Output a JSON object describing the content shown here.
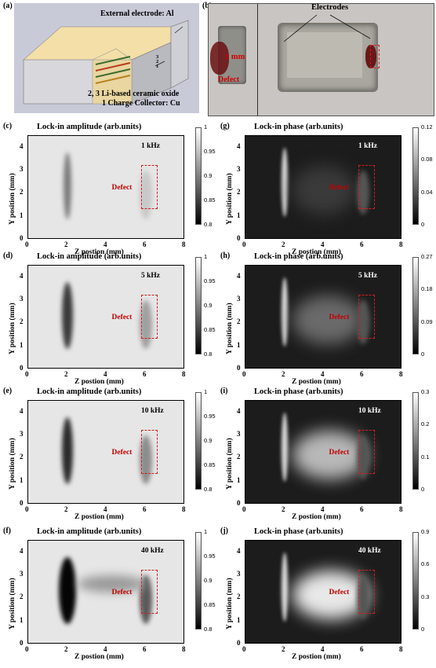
{
  "panels_top": {
    "a": {
      "label": "(a)",
      "text_electrode": "External electrode: Al",
      "text_oxide": "2, 3 Li-based ceramic oxide",
      "text_collector": "1 Charge Collector: Cu",
      "layer_nums": [
        "3",
        "2",
        "1"
      ]
    },
    "b": {
      "label": "(b)",
      "text_electrodes": "Electrodes",
      "text_mm": "1 mm",
      "text_defect": "Defect"
    }
  },
  "axes": {
    "xlabel": "Z postion (mm)",
    "ylabel": "Y position (mm)",
    "xticks": [
      "0",
      "2",
      "4",
      "6",
      "8"
    ],
    "yticks": [
      "0",
      "1",
      "2",
      "3",
      "4"
    ]
  },
  "defect_label": "Defect",
  "maps": [
    {
      "label": "(c)",
      "title": "Lock-in amplitude (arb.units)",
      "freq": "1 kHz",
      "cb": [
        "1",
        "0.95",
        "0.9",
        "0.85",
        "0.8"
      ]
    },
    {
      "label": "(g)",
      "title": "Lock-in phase (arb.units)",
      "freq": "1 kHz",
      "cb": [
        "0.12",
        "0.08",
        "0.04",
        "0"
      ]
    },
    {
      "label": "(d)",
      "title": "Lock-in amplitude (arb.units)",
      "freq": "5 kHz",
      "cb": [
        "1",
        "0.95",
        "0.9",
        "0.85",
        "0.8"
      ]
    },
    {
      "label": "(h)",
      "title": "Lock-in phase (arb.units)",
      "freq": "5 kHz",
      "cb": [
        "0.27",
        "0.18",
        "0.09",
        "0"
      ]
    },
    {
      "label": "(e)",
      "title": "Lock-in amplitude (arb.units)",
      "freq": "10 kHz",
      "cb": [
        "1",
        "0.95",
        "0.9",
        "0.85",
        "0.8"
      ]
    },
    {
      "label": "(i)",
      "title": "Lock-in phase (arb.units)",
      "freq": "10 kHz",
      "cb": [
        "0.3",
        "0.2",
        "0.1",
        "0"
      ]
    },
    {
      "label": "(f)",
      "title": "Lock-in amplitude (arb.units)",
      "freq": "40 kHz",
      "cb": [
        "1",
        "0.95",
        "0.9",
        "0.85",
        "0.8"
      ]
    },
    {
      "label": "(j)",
      "title": "Lock-in phase (arb.units)",
      "freq": "40 kHz",
      "cb": [
        "0.9",
        "0.6",
        "0.3",
        "0"
      ]
    }
  ]
}
